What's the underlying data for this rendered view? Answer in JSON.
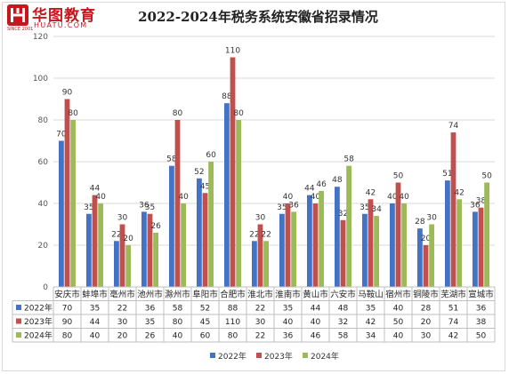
{
  "logo": {
    "cn": "华图教育",
    "en": "HUATU.COM",
    "since": "SINCE 2001",
    "brand_color": "#c8161d"
  },
  "chart_data": {
    "type": "bar",
    "title": "2022-2024年税务系统安徽省招录情况",
    "categories": [
      "安庆市",
      "蚌埠市",
      "亳州市",
      "池州市",
      "滁州市",
      "阜阳市",
      "合肥市",
      "淮北市",
      "淮南市",
      "黄山市",
      "六安市",
      "马鞍山",
      "宿州市",
      "铜陵市",
      "芜湖市",
      "宣城市"
    ],
    "series": [
      {
        "name": "2022年",
        "color": "#4472c4",
        "values": [
          70,
          35,
          22,
          36,
          58,
          52,
          88,
          22,
          35,
          44,
          48,
          35,
          40,
          28,
          51,
          36
        ]
      },
      {
        "name": "2023年",
        "color": "#c0504d",
        "values": [
          90,
          44,
          30,
          35,
          80,
          45,
          110,
          30,
          40,
          40,
          32,
          42,
          50,
          20,
          74,
          38
        ]
      },
      {
        "name": "2024年",
        "color": "#9bbb59",
        "values": [
          80,
          40,
          20,
          26,
          40,
          60,
          80,
          22,
          36,
          46,
          58,
          34,
          40,
          30,
          42,
          50
        ]
      }
    ],
    "ylim": [
      0,
      120
    ],
    "yticks": [
      0,
      20,
      40,
      60,
      80,
      100,
      120
    ],
    "grid": true,
    "legend_position": "bottom",
    "data_table": true
  }
}
